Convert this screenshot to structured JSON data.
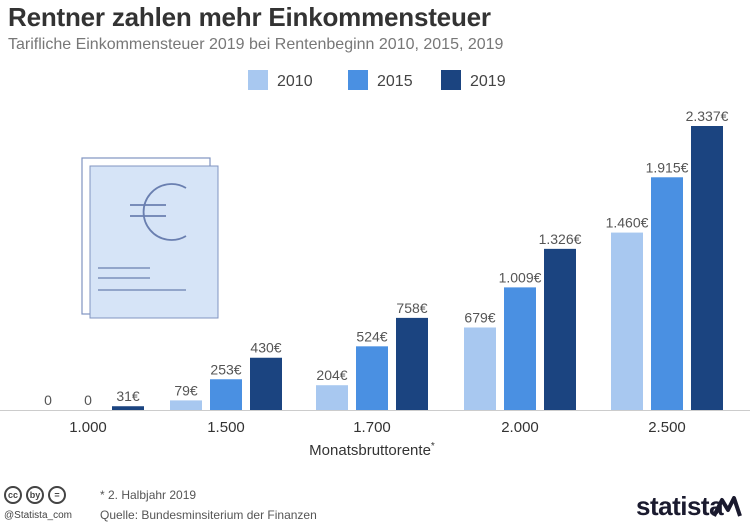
{
  "header": {
    "title": "Rentner zahlen mehr Einkommensteuer",
    "subtitle": "Tarifliche Einkommensteuer 2019 bei Rentenbeginn 2010, 2015, 2019"
  },
  "chart_data": {
    "type": "bar",
    "title": "Rentner zahlen mehr Einkommensteuer",
    "subtitle": "Tarifliche Einkommensteuer 2019 bei Rentenbeginn 2010, 2015, 2019",
    "xlabel": "Monatsbruttorente*",
    "ylabel": "",
    "categories": [
      "1.000",
      "1.500",
      "1.700",
      "2.000",
      "2.500"
    ],
    "series": [
      {
        "name": "2010",
        "color": "#a8c8f0",
        "values": [
          0,
          79,
          204,
          679,
          1460
        ],
        "labels": [
          "0",
          "79€",
          "204€",
          "679€",
          "1.460€"
        ]
      },
      {
        "name": "2015",
        "color": "#4a90e2",
        "values": [
          0,
          253,
          524,
          1009,
          1915
        ],
        "labels": [
          "0",
          "253€",
          "524€",
          "1.009€",
          "1.915€"
        ]
      },
      {
        "name": "2019",
        "color": "#1b4480",
        "values": [
          31,
          430,
          758,
          1326,
          2337
        ],
        "labels": [
          "31€",
          "430€",
          "758€",
          "1.326€",
          "2.337€"
        ]
      }
    ],
    "ylim": [
      0,
      2337
    ],
    "grid": false,
    "legend": "top-center"
  },
  "footer": {
    "note": "* 2. Halbjahr 2019",
    "source": "Quelle: Bundesminsiterium der Finanzen",
    "handle": "@Statista_com",
    "brand": "statista",
    "cc_icons": [
      "cc",
      "by",
      "="
    ]
  },
  "colors": {
    "axis": "#cccccc",
    "label_text": "#555555",
    "illustration_fill": "#d6e4f7",
    "illustration_stroke": "#8094c0"
  }
}
